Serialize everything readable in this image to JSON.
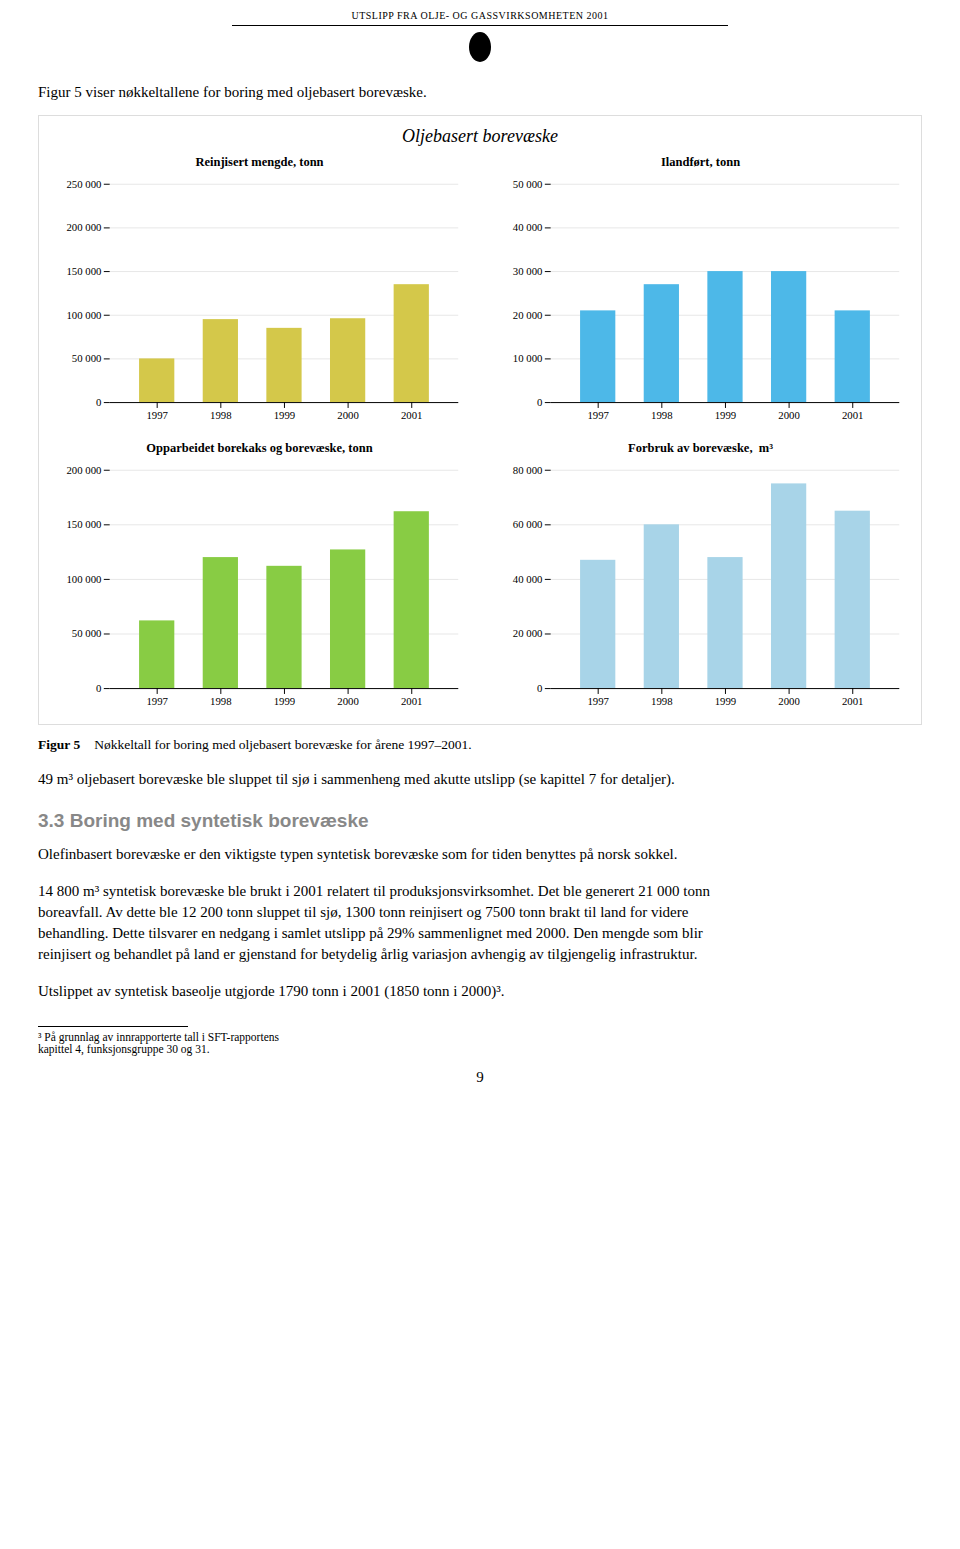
{
  "header": "UTSLIPP FRA OLJE- OG GASSVIRKSOMHETEN 2001",
  "intro": "Figur 5 viser nøkkeltallene for boring med oljebasert borevæske.",
  "title": "Oljebasert borevæske",
  "chart_data": [
    {
      "type": "bar",
      "title": "Reinjisert mengde, tonn",
      "categories": [
        "1997",
        "1998",
        "1999",
        "2000",
        "2001"
      ],
      "values": [
        50000,
        95000,
        85000,
        96000,
        135000
      ],
      "color": "#d4c84a",
      "ylim": [
        0,
        250000
      ],
      "yticks": [
        0,
        {
          "value": 50000,
          "label": "50 000"
        },
        {
          "value": 100000,
          "label": "100 000"
        },
        {
          "value": 150000,
          "label": "150 000"
        },
        {
          "value": 200000,
          "label": "200 000"
        },
        {
          "value": 250000,
          "label": "250 000"
        }
      ],
      "grid": true
    },
    {
      "type": "bar",
      "title": "Ilandført, tonn",
      "categories": [
        "1997",
        "1998",
        "1999",
        "2000",
        "2001"
      ],
      "values": [
        21000,
        27000,
        30000,
        30000,
        21000
      ],
      "color": "#4db8e8",
      "ylim": [
        0,
        50000
      ],
      "yticks": [
        0,
        {
          "value": 10000,
          "label": "10 000"
        },
        {
          "value": 20000,
          "label": "20 000"
        },
        {
          "value": 30000,
          "label": "30 000"
        },
        {
          "value": 40000,
          "label": "40 000"
        },
        {
          "value": 50000,
          "label": "50 000"
        }
      ],
      "grid": true
    },
    {
      "type": "bar",
      "title": "Opparbeidet borekaks og borevæske, tonn",
      "categories": [
        "1997",
        "1998",
        "1999",
        "2000",
        "2001"
      ],
      "values": [
        62000,
        120000,
        112000,
        127000,
        162000
      ],
      "color": "#88cc44",
      "ylim": [
        0,
        200000
      ],
      "yticks": [
        0,
        {
          "value": 50000,
          "label": "50 000"
        },
        {
          "value": 100000,
          "label": "100 000"
        },
        {
          "value": 150000,
          "label": "150 000"
        },
        {
          "value": 200000,
          "label": "200 000"
        }
      ],
      "grid": true
    },
    {
      "type": "bar",
      "title": "Forbruk av borevæske,  m³",
      "categories": [
        "1997",
        "1998",
        "1999",
        "2000",
        "2001"
      ],
      "values": [
        47000,
        60000,
        48000,
        75000,
        65000
      ],
      "color": "#a8d4e8",
      "ylim": [
        0,
        80000
      ],
      "yticks": [
        0,
        {
          "value": 20000,
          "label": "20 000"
        },
        {
          "value": 40000,
          "label": "40 000"
        },
        {
          "value": 60000,
          "label": "60 000"
        },
        {
          "value": 80000,
          "label": "80 000"
        }
      ],
      "grid": true
    }
  ],
  "caption_label": "Figur 5",
  "caption": "Nøkkeltall for boring med oljebasert borevæske for årene 1997–2001.",
  "paragraphs_before": [
    "49 m³ oljebasert borevæske ble sluppet til sjø i sammenheng med akutte utslipp (se kapittel 7 for detaljer)."
  ],
  "section_title": "3.3 Boring med syntetisk borevæske",
  "paragraphs": [
    "Olefinbasert borevæske er den viktigste typen syntetisk borevæske som for tiden benyttes på norsk sokkel.",
    "14 800 m³ syntetisk borevæske ble brukt i 2001 relatert til produksjonsvirksomhet. Det ble generert 21 000 tonn\nboreavfall. Av dette ble 12 200 tonn sluppet til sjø, 1300 tonn reinjisert og 7500 tonn brakt til land for videre\nbehandling. Dette tilsvarer en nedgang i samlet utslipp på 29% sammenlignet med 2000. Den mengde som blir\nreinjisert og behandlet på land er gjenstand for betydelig årlig variasjon avhengig av tilgjengelig infrastruktur.",
    "Utslippet av syntetisk baseolje utgjorde 1790 tonn i 2001 (1850 tonn i 2000)³."
  ],
  "footnote": "³ På grunnlag av innrapporterte tall i SFT-rapportens\n   kapittel 4, funksjonsgruppe 30 og 31.",
  "page_number": "9"
}
